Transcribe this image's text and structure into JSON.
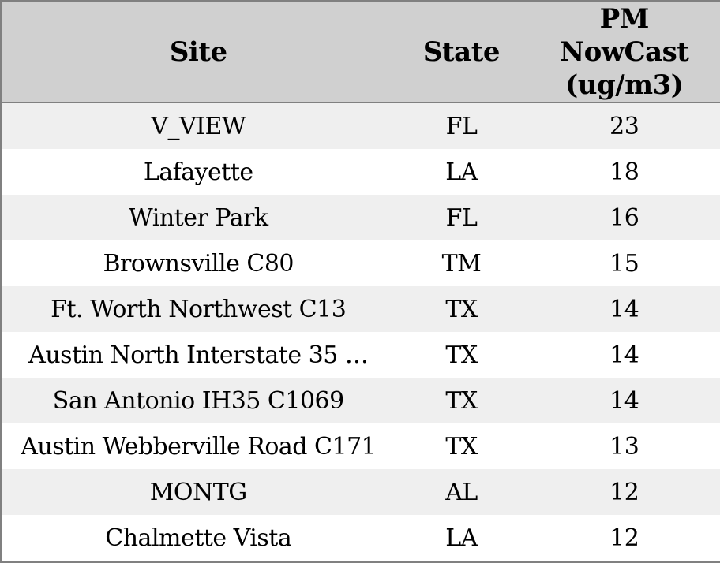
{
  "chart_data": {
    "type": "table",
    "columns": [
      "Site",
      "State",
      "PM NowCast (ug/m3)"
    ],
    "rows": [
      [
        "V_VIEW",
        "FL",
        23
      ],
      [
        "Lafayette",
        "LA",
        18
      ],
      [
        "Winter Park",
        "FL",
        16
      ],
      [
        "Brownsville C80",
        "TM",
        15
      ],
      [
        "Ft. Worth Northwest C13",
        "TX",
        14
      ],
      [
        "Austin North Interstate 35 …",
        "TX",
        14
      ],
      [
        "San Antonio IH35 C1069",
        "TX",
        14
      ],
      [
        "Austin Webberville Road C171",
        "TX",
        13
      ],
      [
        "MONTG",
        "AL",
        12
      ],
      [
        "Chalmette Vista",
        "LA",
        12
      ]
    ],
    "layout": {
      "header_position": "top",
      "striped_rows": true,
      "column_align": [
        "center",
        "center",
        "center"
      ]
    }
  },
  "colors": {
    "header_bg": "#d0d0d0",
    "row_stripe_bg": "#efefef",
    "row_bg": "#ffffff",
    "border": "#808080",
    "text": "#000000"
  }
}
